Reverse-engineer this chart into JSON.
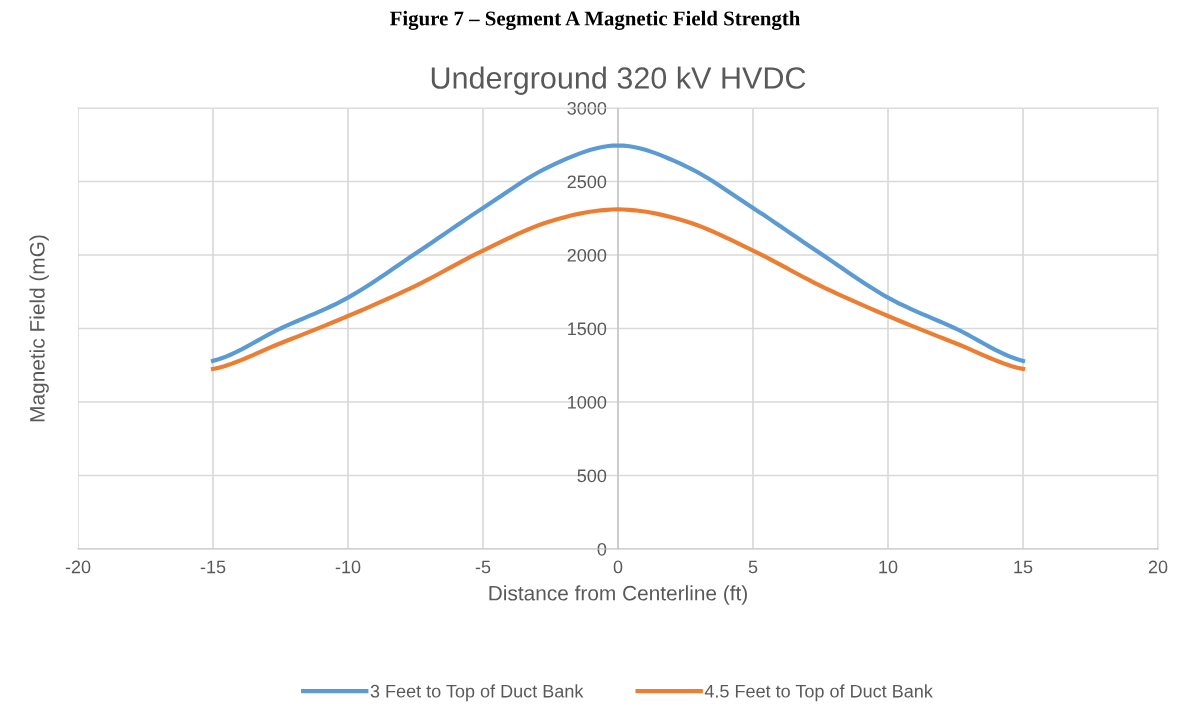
{
  "chart_data": {
    "type": "line",
    "title": "Underground 320 kV HVDC",
    "subtitle": "Figure 7 – Segment A Magnetic Field Strength",
    "xlabel": "Distance from Centerline (ft)",
    "ylabel": "Magnetic Field (mG)",
    "x": [
      -15,
      -12.5,
      -10,
      -7.5,
      -5,
      -2.5,
      0,
      2.5,
      5,
      7.5,
      10,
      12.5,
      15
    ],
    "series": [
      {
        "name": "3 Feet to Top of Duct Bank",
        "color": "#5b9bd5",
        "values": [
          1280,
          1500,
          1710,
          2010,
          2320,
          2605,
          2745,
          2605,
          2320,
          2010,
          1710,
          1500,
          1280
        ]
      },
      {
        "name": "4.5 Feet to Top of Duct Bank",
        "color": "#ed7d31",
        "values": [
          1225,
          1400,
          1585,
          1790,
          2030,
          2230,
          2310,
          2230,
          2030,
          1790,
          1585,
          1400,
          1225
        ]
      }
    ],
    "xlim": [
      -20,
      20
    ],
    "xticks": [
      -20,
      -15,
      -10,
      -5,
      0,
      5,
      10,
      15,
      20
    ],
    "ylim": [
      0,
      3000
    ],
    "yticks": [
      0,
      500,
      1000,
      1500,
      2000,
      2500,
      3000
    ],
    "grid": true,
    "legend": "bottom",
    "marker": "none",
    "line_style": "solid"
  }
}
